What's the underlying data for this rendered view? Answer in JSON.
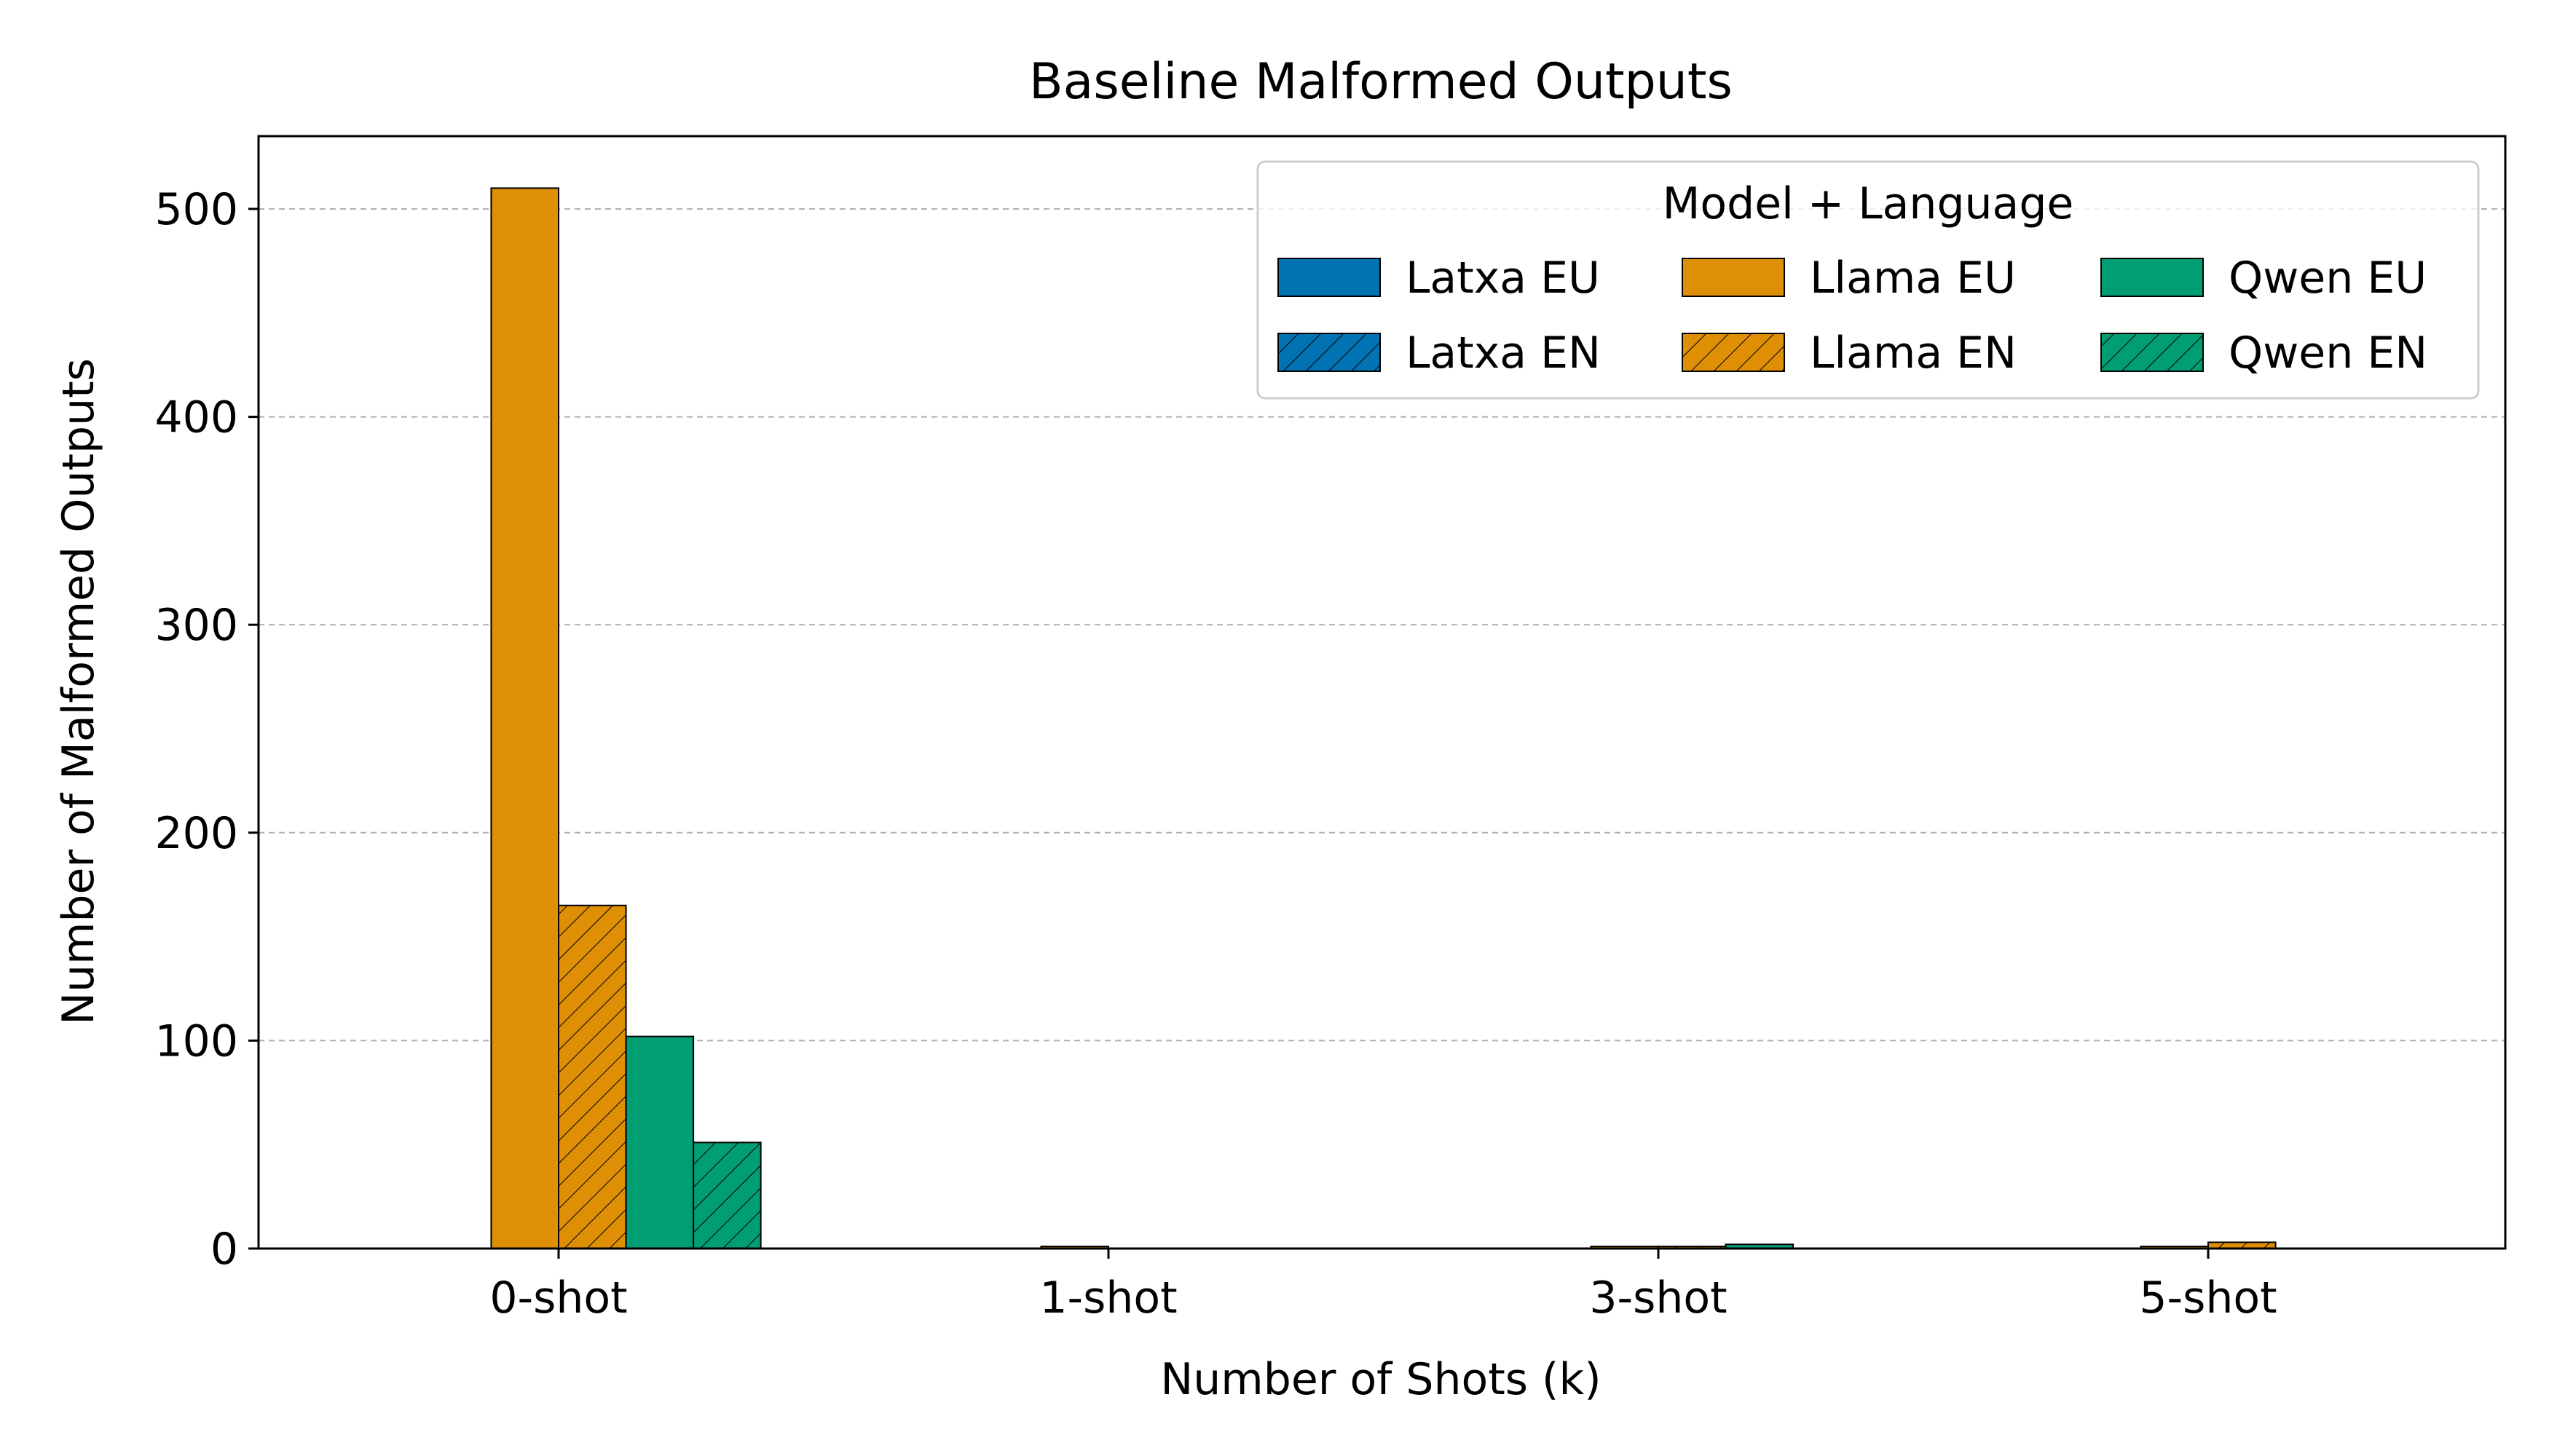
{
  "chart_data": {
    "type": "bar",
    "title": "Baseline Malformed Outputs",
    "xlabel": "Number of Shots (k)",
    "ylabel": "Number of Malformed Outputs",
    "categories": [
      "0-shot",
      "1-shot",
      "3-shot",
      "5-shot"
    ],
    "ylim": [
      0,
      535
    ],
    "yticks": [
      0,
      100,
      200,
      300,
      400,
      500
    ],
    "grid": "y-dashed",
    "legend": {
      "title": "Model + Language",
      "placement": "top-right",
      "columns": 3
    },
    "series": [
      {
        "name": "Latxa EU",
        "color": "#0173b2",
        "hatch": false,
        "values": [
          0,
          0,
          0,
          0
        ]
      },
      {
        "name": "Latxa EN",
        "color": "#0173b2",
        "hatch": true,
        "values": [
          0,
          0,
          0,
          0
        ]
      },
      {
        "name": "Llama EU",
        "color": "#de8f05",
        "hatch": false,
        "values": [
          510,
          1,
          1,
          1
        ]
      },
      {
        "name": "Llama EN",
        "color": "#de8f05",
        "hatch": true,
        "values": [
          165,
          0,
          1,
          3
        ]
      },
      {
        "name": "Qwen EU",
        "color": "#029e73",
        "hatch": false,
        "values": [
          102,
          0,
          2,
          0
        ]
      },
      {
        "name": "Qwen EN",
        "color": "#029e73",
        "hatch": true,
        "values": [
          51,
          0,
          0,
          0
        ]
      }
    ]
  }
}
